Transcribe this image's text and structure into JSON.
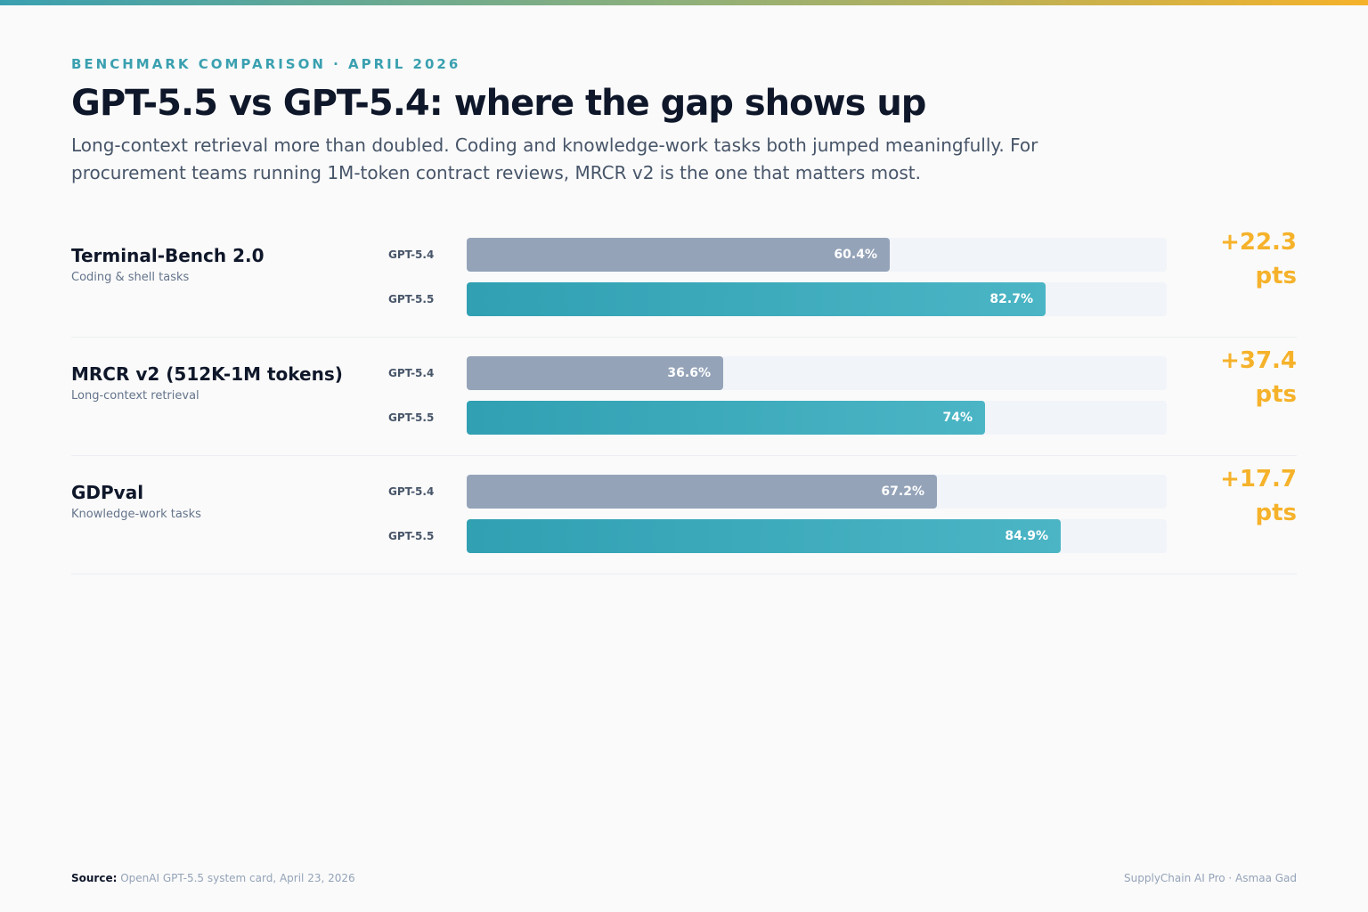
{
  "header": {
    "eyebrow": "BENCHMARK COMPARISON · APRIL 2026",
    "title": "GPT-5.5 vs GPT-5.4: where the gap shows up",
    "subtitle": "Long-context retrieval more than doubled. Coding and knowledge-work tasks both jumped meaningfully. For procurement teams running 1M-token contract reviews, MRCR v2 is the one that matters most."
  },
  "colors": {
    "accent_teal": "#3aa0b0",
    "old_model_bar": "#94a3b8",
    "new_model_bar": "#30a0b2",
    "delta_gold": "#f5b22a",
    "track": "#f1f4f8"
  },
  "chart_data": {
    "type": "bar",
    "orientation": "horizontal",
    "ylim": [
      0,
      100
    ],
    "categories": [
      "Terminal-Bench 2.0",
      "MRCR v2 (512K-1M tokens)",
      "GDPval"
    ],
    "category_descriptions": [
      "Coding & shell tasks",
      "Long-context retrieval",
      "Knowledge-work tasks"
    ],
    "series": [
      {
        "name": "GPT-5.4",
        "values": [
          60.4,
          36.6,
          67.2
        ],
        "labels": [
          "60.4%",
          "36.6%",
          "67.2%"
        ]
      },
      {
        "name": "GPT-5.5",
        "values": [
          82.7,
          74,
          84.9
        ],
        "labels": [
          "82.7%",
          "74%",
          "84.9%"
        ]
      }
    ],
    "deltas": [
      {
        "value": "+22.3",
        "unit": "pts"
      },
      {
        "value": "+37.4",
        "unit": "pts"
      },
      {
        "value": "+17.7",
        "unit": "pts"
      }
    ]
  },
  "footer": {
    "source_label": "Source:",
    "source_text": "OpenAI GPT-5.5 system card, April 23, 2026",
    "credit": "SupplyChain AI Pro · Asmaa Gad"
  }
}
